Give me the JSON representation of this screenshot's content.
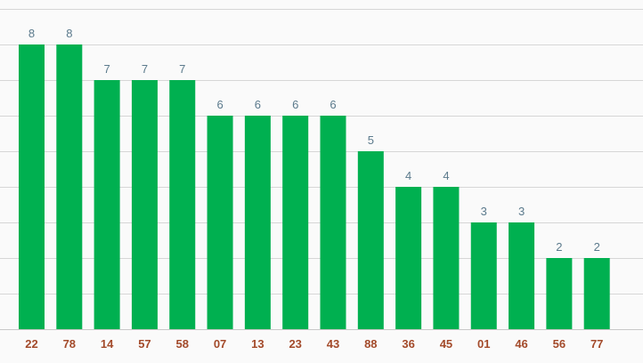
{
  "chart_data": {
    "type": "bar",
    "title": "",
    "xlabel": "",
    "ylabel": "",
    "categories": [
      "22",
      "78",
      "14",
      "57",
      "58",
      "07",
      "13",
      "23",
      "43",
      "88",
      "36",
      "45",
      "01",
      "46",
      "56",
      "77"
    ],
    "values": [
      8,
      8,
      7,
      7,
      7,
      6,
      6,
      6,
      6,
      5,
      4,
      4,
      3,
      3,
      2,
      2
    ],
    "ylim": [
      0,
      9
    ],
    "grid": true,
    "data_labels": true,
    "colors": {
      "bar": "#00b050",
      "value_label": "#5b7a8c",
      "category_label": "#a34a2a",
      "grid": "#d6d6d6"
    }
  }
}
